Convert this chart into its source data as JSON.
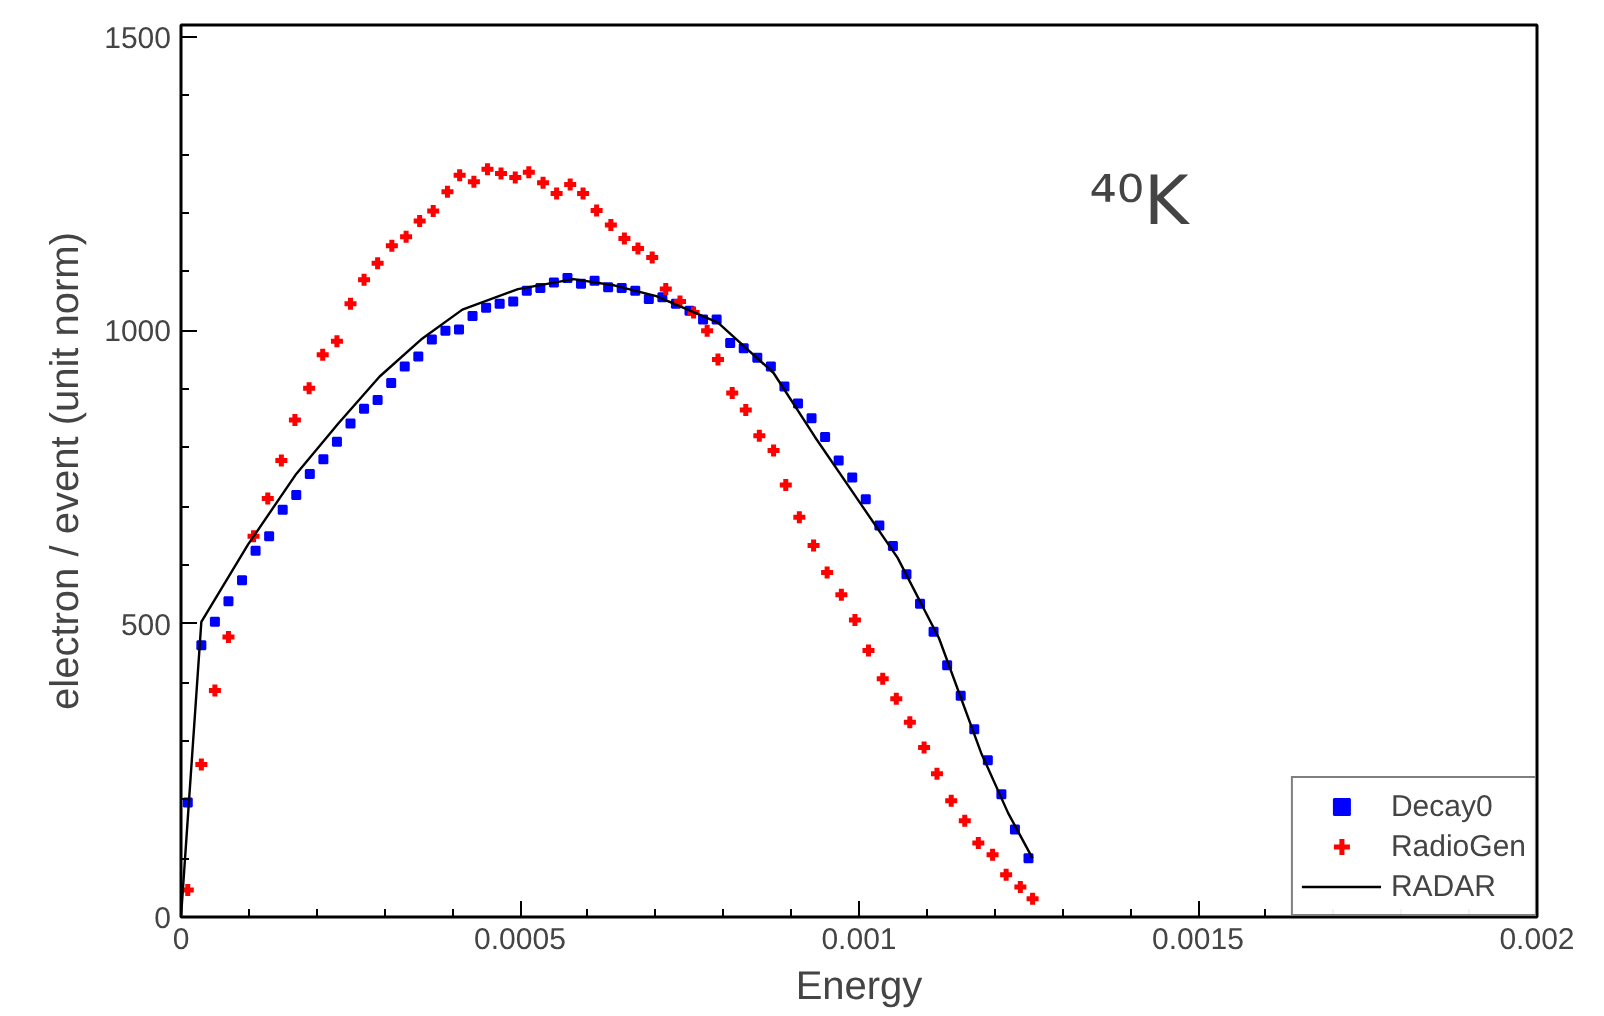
{
  "chart_data": {
    "type": "scatter",
    "xlabel": "Energy",
    "ylabel": "electron / event (unit norm)",
    "annotations": [
      "⁴⁰K"
    ],
    "xlim": [
      0,
      0.002
    ],
    "ylim": [
      0,
      1520
    ],
    "xticks": [
      0,
      {
        "value": 0.0005,
        "label": "0.0005"
      },
      {
        "value": 0.001,
        "label": "0.001"
      },
      {
        "value": 0.0015,
        "label": "0.0015"
      },
      {
        "value": 0.002,
        "label": "0.002"
      }
    ],
    "yticks": [
      0,
      500,
      1000,
      1500
    ],
    "grid": false,
    "legend": "bottom right",
    "series": [
      {
        "name": "Decay0",
        "color": "#0000ff",
        "marker": "square",
        "x": [
          1e-05,
          3e-05,
          5e-05,
          7e-05,
          9e-05,
          0.00011,
          0.00013,
          0.00015,
          0.00017,
          0.00019,
          0.00021,
          0.00023,
          0.00025,
          0.00027,
          0.00029,
          0.00031,
          0.00033,
          0.00035,
          0.00037,
          0.00039,
          0.00041,
          0.00043,
          0.00045,
          0.00047,
          0.00049,
          0.00051,
          0.00053,
          0.00055,
          0.00057,
          0.00059,
          0.00061,
          0.00063,
          0.00065,
          0.00067,
          0.00069,
          0.00071,
          0.00073,
          0.00075,
          0.00077,
          0.00079,
          0.00081,
          0.00083,
          0.00085,
          0.00087,
          0.00089,
          0.00091,
          0.00093,
          0.00095,
          0.00097,
          0.00099,
          0.00101,
          0.00103,
          0.00105,
          0.00107,
          0.00109,
          0.00111,
          0.00113,
          0.00115,
          0.00117,
          0.00119,
          0.00121,
          0.00123,
          0.00125
        ],
        "values": [
          195,
          463,
          503,
          538,
          574,
          624,
          649,
          694,
          719,
          755,
          780,
          810,
          841,
          866,
          881,
          910,
          938,
          955,
          984,
          999,
          1001,
          1024,
          1038,
          1045,
          1049,
          1067,
          1072,
          1081,
          1089,
          1079,
          1084,
          1073,
          1072,
          1067,
          1053,
          1056,
          1045,
          1033,
          1018,
          1018,
          978,
          969,
          953,
          938,
          904,
          875,
          850,
          818,
          778,
          749,
          712,
          667,
          632,
          584,
          534,
          486,
          429,
          377,
          320,
          267,
          209,
          149,
          100
        ]
      },
      {
        "name": "RadioGen",
        "color": "#ff0000",
        "marker": "cross",
        "x": [
          1e-05,
          3e-05,
          5e-05,
          7e-05,
          0.000107,
          0.000128,
          0.000148,
          0.000168,
          0.000189,
          0.000209,
          0.00023,
          0.00025,
          0.00027,
          0.00029,
          0.000311,
          0.000332,
          0.000352,
          0.000372,
          0.000393,
          0.000411,
          0.000432,
          0.000452,
          0.000472,
          0.000493,
          0.000513,
          0.000534,
          0.000554,
          0.000574,
          0.000593,
          0.000613,
          0.000634,
          0.000654,
          0.000674,
          0.000695,
          0.000715,
          0.000736,
          0.000756,
          0.000776,
          0.000792,
          0.000813,
          0.000833,
          0.000853,
          0.000874,
          0.000892,
          0.000912,
          0.000933,
          0.000953,
          0.000974,
          0.000994,
          0.001014,
          0.001035,
          0.001055,
          0.001075,
          0.001096,
          0.001115,
          0.001136,
          0.001156,
          0.001176,
          0.001197,
          0.001217,
          0.001238,
          0.001256
        ],
        "values": [
          46,
          260,
          386,
          477,
          649,
          713,
          778,
          847,
          901,
          958,
          981,
          1045,
          1086,
          1114,
          1144,
          1159,
          1186,
          1203,
          1236,
          1264,
          1253,
          1274,
          1267,
          1260,
          1269,
          1251,
          1233,
          1248,
          1233,
          1204,
          1179,
          1156,
          1139,
          1124,
          1070,
          1049,
          1030,
          999,
          950,
          893,
          864,
          820,
          795,
          736,
          681,
          633,
          587,
          549,
          506,
          454,
          406,
          372,
          332,
          289,
          244,
          198,
          164,
          126,
          106,
          72,
          51,
          31
        ]
      },
      {
        "name": "RADAR",
        "color": "#000000",
        "type": "line",
        "marker": "none",
        "line_style": "solid",
        "x": [
          0,
          3e-05,
          9.9e-05,
          0.00017,
          0.000232,
          0.000293,
          0.000354,
          0.000415,
          0.000497,
          0.000579,
          0.00064,
          0.000701,
          0.000792,
          0.000874,
          0.000935,
          0.000996,
          0.001057,
          0.001118,
          0.00118,
          0.00122,
          0.001256
        ],
        "values": [
          0,
          503,
          635,
          755,
          841,
          921,
          984,
          1035,
          1070,
          1087,
          1076,
          1058,
          1013,
          927,
          818,
          715,
          612,
          475,
          280,
          177,
          100
        ]
      }
    ]
  }
}
